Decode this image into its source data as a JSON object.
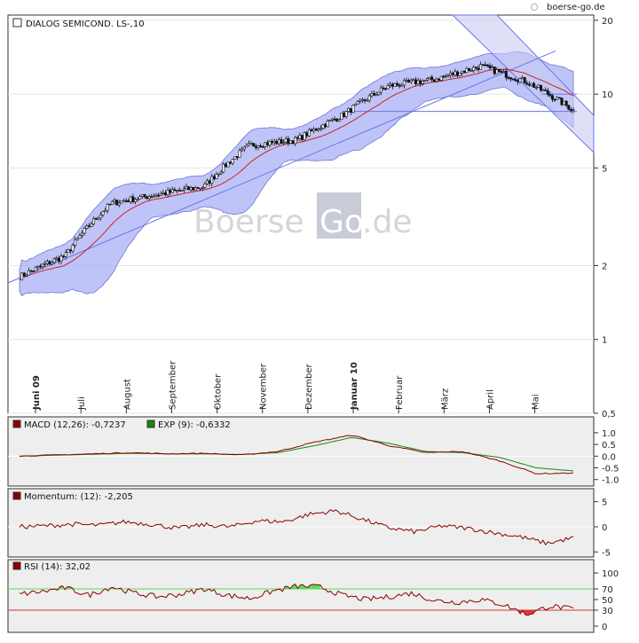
{
  "watermark_top": "boerse-go.de",
  "watermark_center": [
    "Boerse",
    "Go",
    ".de"
  ],
  "colors": {
    "band_fill": "#aab0f5",
    "band_stroke": "#6b73d8",
    "trend_line": "#6a74e6",
    "ma_line": "#cc2222",
    "macd_line": "#8b0000",
    "signal_line": "#118811",
    "momentum_line": "#8b0000",
    "rsi_line": "#8b0000",
    "rsi_over": "#55dd55",
    "rsi_under": "#dd3333",
    "channel_fill": "#c8ccf3"
  },
  "chart_data": [
    {
      "type": "candlestick",
      "title": "DIALOG SEMICOND.   LS-,10",
      "yscale": "log",
      "ylim": [
        0.5,
        21
      ],
      "yticks": [
        20,
        10,
        5,
        2,
        1,
        0.5
      ],
      "ytick_labels": [
        "20",
        "10",
        "5",
        "2",
        "1",
        "0,5"
      ],
      "month_labels": [
        "Juni 09",
        "Juli",
        "August",
        "September",
        "Oktober",
        "November",
        "Dezember",
        "Januar 10",
        "Februar",
        "März",
        "April",
        "Mai"
      ],
      "bold_months": [
        "Juni 09",
        "Januar 10"
      ],
      "month_positions": [
        0,
        1,
        2,
        3,
        4,
        5,
        6,
        7,
        8,
        9,
        10,
        11
      ],
      "close_by_month": [
        1.8,
        2.2,
        3.6,
        3.9,
        4.2,
        6.2,
        6.5,
        8.2,
        10.8,
        11.5,
        13.0,
        11.2
      ],
      "end_close": 8.6,
      "trendline_values": [
        1.7,
        15.0
      ],
      "support_line": 8.5,
      "resistance_line": 10.0,
      "overlay": "Bollinger bands and moving average"
    },
    {
      "type": "line",
      "title": "MACD (12,26): -0,7237",
      "legend": [
        "MACD (12,26): -0,7237",
        "EXP (9): -0,6332"
      ],
      "ylim": [
        -1.2,
        1.3
      ],
      "yticks": [
        1.0,
        0.5,
        0.0,
        -0.5,
        -1.0
      ],
      "ytick_labels": [
        "1.0",
        "0.5",
        "0.0",
        "-0.5",
        "-1.0"
      ],
      "series": [
        {
          "name": "MACD (12,26)",
          "values": [
            0.0,
            0.05,
            0.1,
            0.15,
            0.1,
            0.12,
            0.05,
            0.2,
            0.6,
            0.9,
            0.45,
            0.15,
            0.2,
            -0.2,
            -0.75,
            -0.72
          ]
        },
        {
          "name": "EXP (9)",
          "values": [
            0.0,
            0.04,
            0.08,
            0.12,
            0.1,
            0.1,
            0.07,
            0.15,
            0.45,
            0.8,
            0.55,
            0.2,
            0.15,
            -0.05,
            -0.5,
            -0.63
          ]
        }
      ]
    },
    {
      "type": "line",
      "title": "Momentum: (12): -2,205",
      "ylim": [
        -6,
        6
      ],
      "yticks": [
        5,
        0,
        -5
      ],
      "ytick_labels": [
        "5",
        "0",
        "-5"
      ],
      "series": [
        {
          "name": "Momentum (12)",
          "values": [
            0,
            0.2,
            0.5,
            0.3,
            1.0,
            0.5,
            -0.3,
            0.4,
            0.0,
            1.2,
            1.0,
            2.5,
            3.2,
            1.5,
            -0.2,
            -1.0,
            0.2,
            -0.3,
            -1.2,
            -2.0,
            -3.3,
            -2.2
          ]
        }
      ]
    },
    {
      "type": "line",
      "title": "RSI (14): 32,02",
      "ylim": [
        0,
        100
      ],
      "yticks": [
        100,
        70,
        50,
        30,
        0
      ],
      "ytick_labels": [
        "100",
        "70",
        "50",
        "30",
        "0"
      ],
      "overbought": 70,
      "oversold": 30,
      "series": [
        {
          "name": "RSI (14)",
          "values": [
            60,
            65,
            72,
            58,
            74,
            62,
            55,
            60,
            70,
            58,
            52,
            66,
            75,
            74,
            58,
            50,
            55,
            62,
            48,
            45,
            50,
            40,
            22,
            38,
            32
          ]
        }
      ]
    }
  ]
}
